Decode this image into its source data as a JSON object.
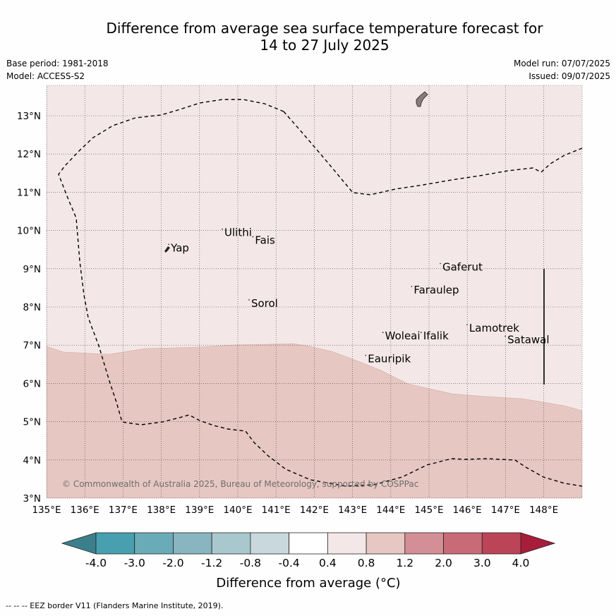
{
  "header": {
    "title_line1": "Difference from average sea surface temperature forecast for",
    "title_line2": "14 to 27 July 2025",
    "base_period": "Base period: 1981-2018",
    "model": "Model: ACCESS-S2",
    "model_run": "Model run: 07/07/2025",
    "issued": "Issued: 09/07/2025"
  },
  "map": {
    "lon_range": [
      135,
      149
    ],
    "lat_range": [
      3,
      13.8
    ],
    "lon_ticks": [
      "135°E",
      "136°E",
      "137°E",
      "138°E",
      "139°E",
      "140°E",
      "141°E",
      "142°E",
      "143°E",
      "144°E",
      "145°E",
      "146°E",
      "147°E",
      "148°E"
    ],
    "lat_ticks": [
      "3°N",
      "4°N",
      "5°N",
      "6°N",
      "7°N",
      "8°N",
      "9°N",
      "10°N",
      "11°N",
      "12°N",
      "13°N"
    ],
    "places": [
      {
        "name": "Yap",
        "lon": 138.25,
        "lat": 9.45
      },
      {
        "name": "Ulithi",
        "lon": 139.65,
        "lat": 9.85
      },
      {
        "name": "Fais",
        "lon": 140.45,
        "lat": 9.65
      },
      {
        "name": "Gaferut",
        "lon": 145.35,
        "lat": 8.95
      },
      {
        "name": "Faraulep",
        "lon": 144.6,
        "lat": 8.35
      },
      {
        "name": "Sorol",
        "lon": 140.35,
        "lat": 8.0
      },
      {
        "name": "Lamotrek",
        "lon": 146.05,
        "lat": 7.35
      },
      {
        "name": "Woleai",
        "lon": 143.85,
        "lat": 7.15
      },
      {
        "name": "Ifalik",
        "lon": 144.85,
        "lat": 7.15
      },
      {
        "name": "Satawal",
        "lon": 147.05,
        "lat": 7.05
      },
      {
        "name": "Eauripik",
        "lon": 143.4,
        "lat": 6.55
      }
    ],
    "copyright": "© Commonwealth of Australia 2025, Bureau of Meteorology, supported by COSPPac",
    "regions": [
      {
        "category": "0.4 to 0.8",
        "color": "#f3e8e7"
      },
      {
        "category": "0.8 to 1.2",
        "color": "#e6c7c2"
      }
    ]
  },
  "colorbar": {
    "label": "Difference from average (°C)",
    "ticks": [
      "-4.0",
      "-3.0",
      "-2.0",
      "-1.2",
      "-0.8",
      "-0.4",
      "0.4",
      "0.8",
      "1.2",
      "2.0",
      "3.0",
      "4.0"
    ],
    "under_color": "#3b7f8c",
    "over_color": "#a81d3a",
    "colors": [
      "#489fb0",
      "#6aabb8",
      "#88b5c0",
      "#a8c8ce",
      "#c8d8dc",
      "#ffffff",
      "#f3e8e7",
      "#e6c7c2",
      "#d48f96",
      "#c96b76",
      "#bc4457"
    ]
  },
  "footer": "--  --  -- EEZ border V11 (Flanders Marine Institute, 2019)."
}
